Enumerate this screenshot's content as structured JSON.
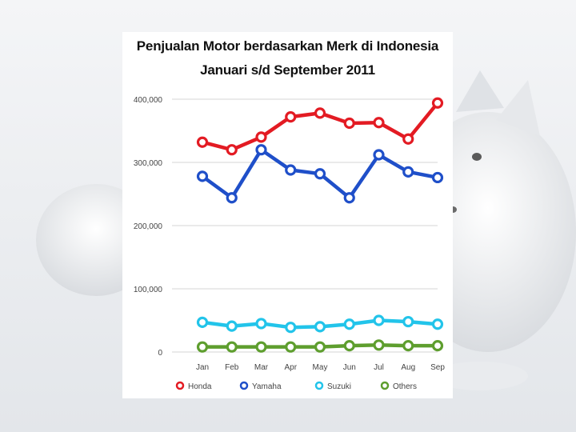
{
  "chart_data": {
    "type": "line",
    "title": "Penjualan Motor berdasarkan Merk di Indonesia",
    "subtitle": "Januari s/d September 2011",
    "xlabel": "",
    "ylabel": "",
    "categories": [
      "Jan",
      "Feb",
      "Mar",
      "Apr",
      "May",
      "Jun",
      "Jul",
      "Aug",
      "Sep"
    ],
    "ylim": [
      0,
      400000
    ],
    "yticks": [
      0,
      100000,
      200000,
      300000,
      400000
    ],
    "ytick_labels": [
      "0",
      "100,000",
      "200,000",
      "300,000",
      "400,000"
    ],
    "grid": "horizontal",
    "legend_position": "bottom",
    "series": [
      {
        "name": "Honda",
        "color": "#e31b23",
        "values": [
          332000,
          320000,
          340000,
          372000,
          378000,
          362000,
          363000,
          337000,
          394000
        ]
      },
      {
        "name": "Yamaha",
        "color": "#1f4fc9",
        "values": [
          278000,
          244000,
          320000,
          288000,
          282000,
          244000,
          312000,
          285000,
          276000
        ]
      },
      {
        "name": "Suzuki",
        "color": "#22c4ea",
        "values": [
          47000,
          41000,
          45000,
          39000,
          40000,
          44000,
          50000,
          48000,
          44000
        ]
      },
      {
        "name": "Others",
        "color": "#5e9e2e",
        "values": [
          8000,
          8000,
          8000,
          8000,
          8000,
          10000,
          11000,
          10000,
          10000
        ]
      }
    ]
  }
}
